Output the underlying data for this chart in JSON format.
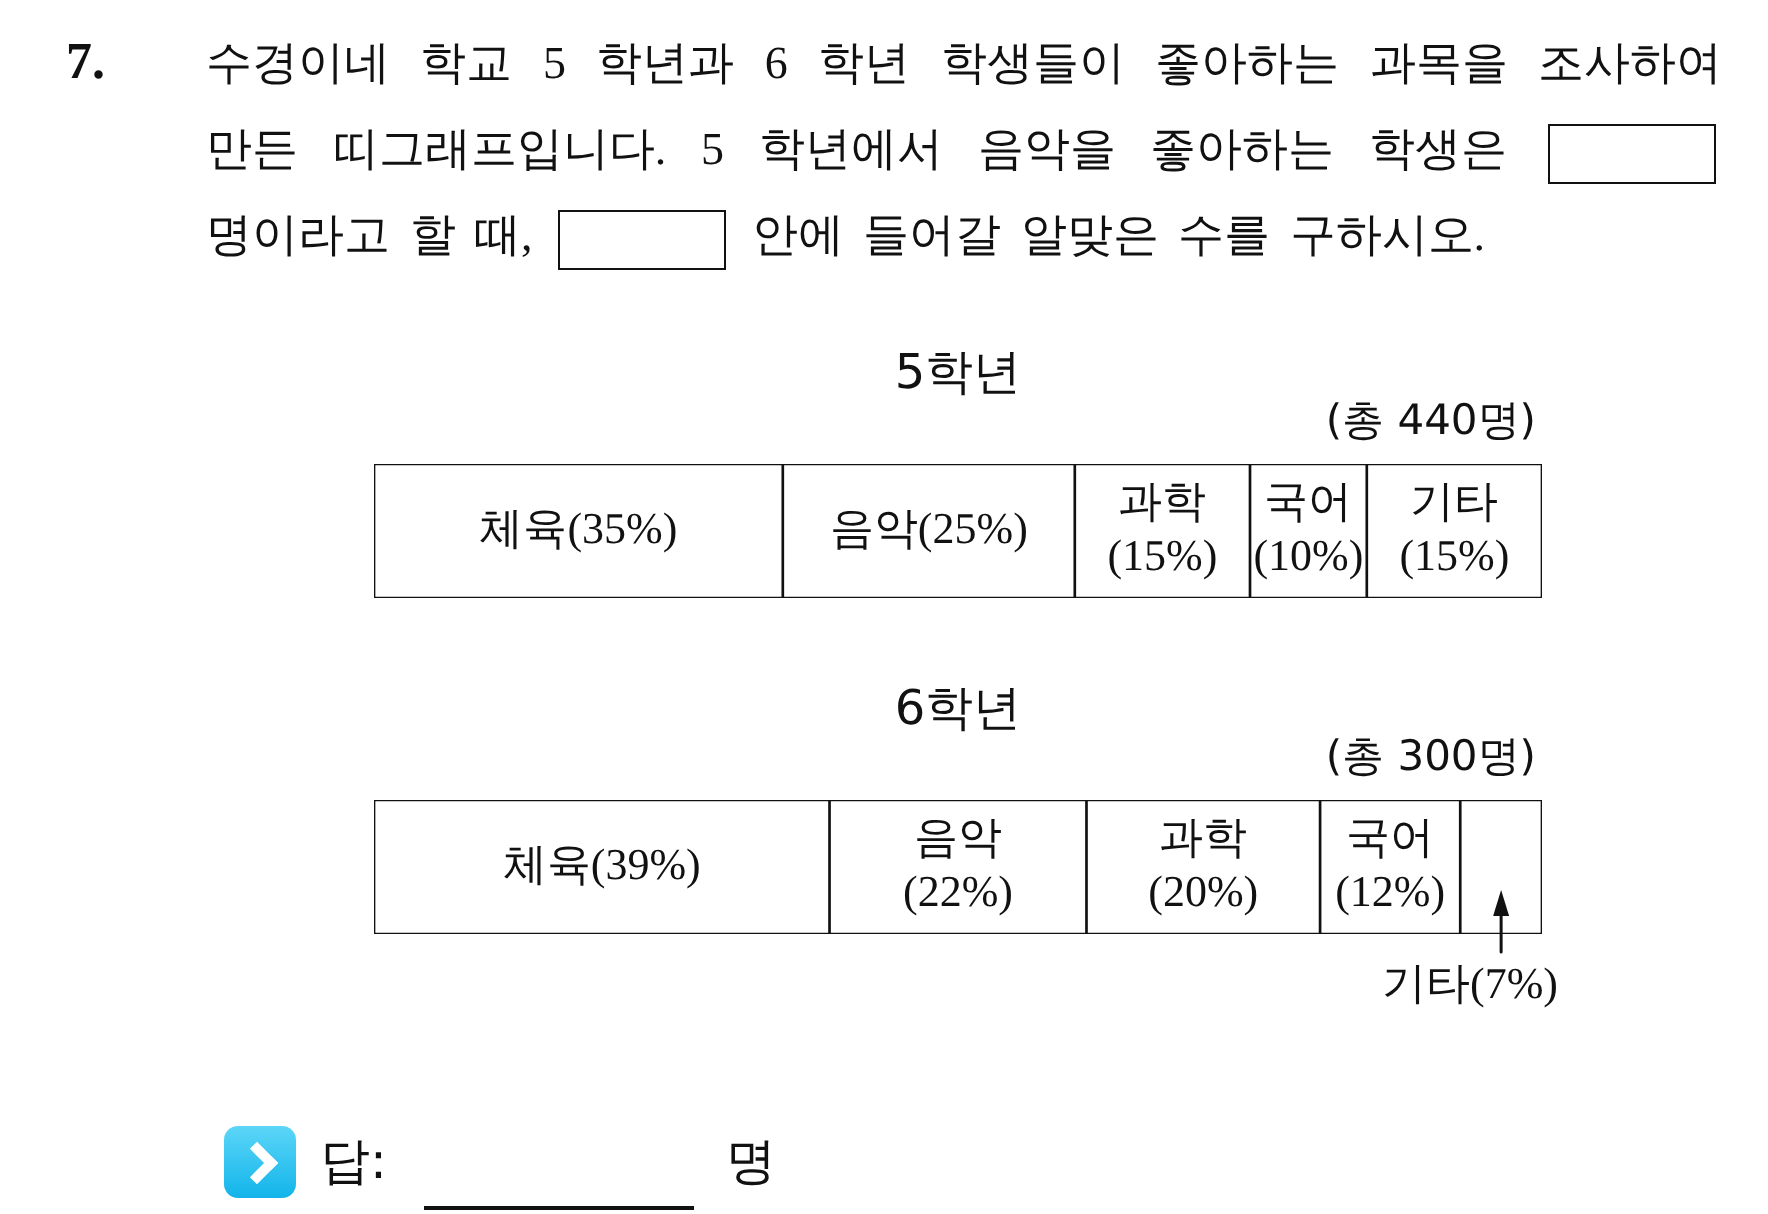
{
  "chart_data": [
    {
      "type": "bar",
      "orientation": "horizontal",
      "stacked": true,
      "title": "5학년",
      "subtitle": "(총 440명)",
      "annotations": [
        "7.",
        "수경이네 학교 5 학년과 6 학년 학생들이 좋아하는 과목을 조사하여 만든 띠그래프입니다. 5 학년에서 음악을 좋아하는 학생은",
        "명이라고 할 때,",
        "안에 들어갈 알맞은 수를 구하시오."
      ],
      "categories": [
        null
      ],
      "xlim": [
        0,
        100
      ],
      "tick_labels": false,
      "series": [
        {
          "name": "체육",
          "color": "#ffffff",
          "values": [
            35
          ],
          "value_labels": [
            "(35%)"
          ]
        },
        {
          "name": "음악",
          "color": "#ffffff",
          "values": [
            25
          ],
          "value_labels": [
            "(25%)"
          ]
        },
        {
          "name": "과학",
          "color": "#ffffff",
          "values": [
            15
          ],
          "value_labels": [
            "(15%)"
          ]
        },
        {
          "name": "국어",
          "color": "#ffffff",
          "values": [
            10
          ],
          "value_labels": [
            "(10%)"
          ]
        },
        {
          "name": "기타",
          "color": "#ffffff",
          "values": [
            15
          ],
          "value_labels": [
            "(15%)"
          ]
        }
      ]
    },
    {
      "type": "bar",
      "orientation": "horizontal",
      "stacked": true,
      "title": "6학년",
      "subtitle": "(총 300명)",
      "annotations": [
        "답:",
        "명"
      ],
      "categories": [
        null
      ],
      "xlim": [
        0,
        100
      ],
      "tick_labels": false,
      "series": [
        {
          "name": "체육",
          "color": "#ffffff",
          "values": [
            39
          ],
          "value_labels": [
            "(39%)"
          ]
        },
        {
          "name": "음악",
          "color": "#ffffff",
          "values": [
            22
          ],
          "value_labels": [
            "(22%)"
          ]
        },
        {
          "name": "과학",
          "color": "#ffffff",
          "values": [
            20
          ],
          "value_labels": [
            "(20%)"
          ]
        },
        {
          "name": "국어",
          "color": "#ffffff",
          "values": [
            12
          ],
          "value_labels": [
            "(12%)"
          ]
        },
        {
          "name": "기타",
          "color": "#ffffff",
          "values": [
            7
          ],
          "value_labels": [
            "(7%)"
          ]
        }
      ]
    }
  ]
}
